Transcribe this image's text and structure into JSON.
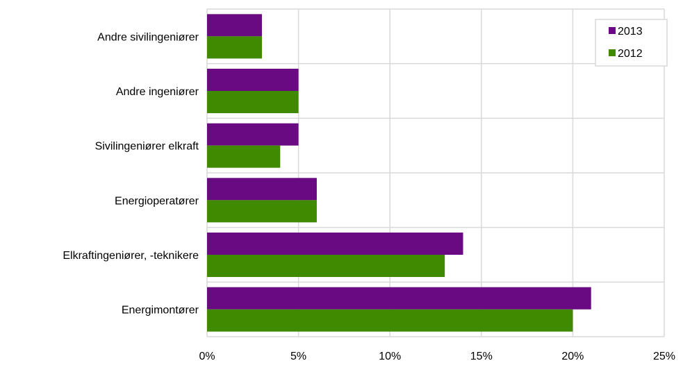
{
  "chart_data": {
    "type": "bar",
    "orientation": "horizontal",
    "categories": [
      "Andre sivilingeniører",
      "Andre ingeniører",
      "Sivilingeniører elkraft",
      "Energioperatører",
      "Elkraftingeniører,  -teknikere",
      "Energimontører"
    ],
    "series": [
      {
        "name": "2013",
        "color": "#6a0a82",
        "values": [
          3,
          5,
          5,
          6,
          14,
          21
        ]
      },
      {
        "name": "2012",
        "color": "#3f8a00",
        "values": [
          3,
          5,
          4,
          6,
          13,
          20
        ]
      }
    ],
    "xlim": [
      0,
      25
    ],
    "xticks": [
      0,
      5,
      10,
      15,
      20,
      25
    ],
    "xtick_labels": [
      "0%",
      "5%",
      "10%",
      "15%",
      "20%",
      "25%"
    ],
    "unit": "%",
    "grid": true,
    "legend_position": "top-right"
  }
}
